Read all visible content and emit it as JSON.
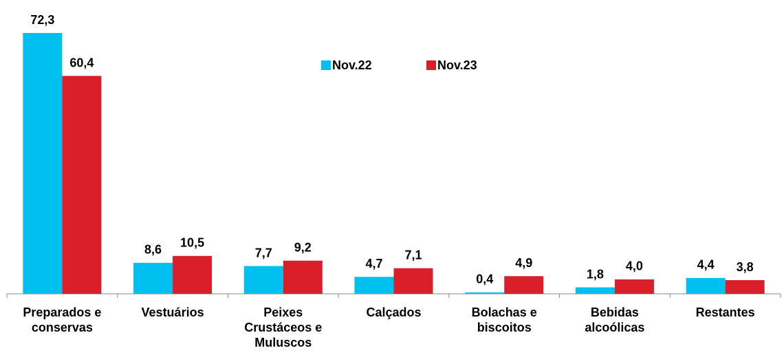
{
  "chart_data": {
    "type": "bar",
    "categories": [
      "Preparados e conservas",
      "Vestuários",
      "Peixes Crustáceos e Muluscos",
      "Calçados",
      "Bolachas e biscoitos",
      "Bebidas alcoólicas",
      "Restantes"
    ],
    "series": [
      {
        "name": "Nov.22",
        "color": "#00c0f0",
        "values": [
          72.3,
          8.6,
          7.7,
          4.7,
          0.4,
          1.8,
          4.4
        ],
        "value_labels": [
          "72,3",
          "8,6",
          "7,7",
          "4,7",
          "0,4",
          "1,8",
          "4,4"
        ]
      },
      {
        "name": "Nov.23",
        "color": "#d9202a",
        "values": [
          60.4,
          10.5,
          9.2,
          7.1,
          4.9,
          4.0,
          3.8
        ],
        "value_labels": [
          "60,4",
          "10,5",
          "9,2",
          "7,1",
          "4,9",
          "4,0",
          "3,8"
        ]
      }
    ]
  }
}
